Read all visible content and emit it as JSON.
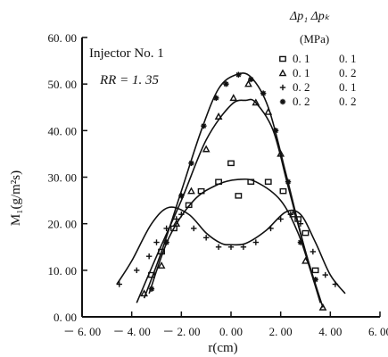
{
  "chart_data": {
    "type": "line",
    "xlabel": "r(cm)",
    "ylabel": "M₁(g/m²s)",
    "xlim": [
      -6,
      6
    ],
    "ylim": [
      0,
      60
    ],
    "x_ticks": [
      "－ 6. 00",
      "－ 4. 00",
      "－ 2. 00",
      "0. 00",
      "2. 00",
      "4. 00",
      "6. 00"
    ],
    "x_tick_values": [
      -6,
      -4,
      -2,
      0,
      2,
      4,
      6
    ],
    "y_ticks": [
      "0. 00",
      "10. 00",
      "20. 00",
      "30. 00",
      "40. 00",
      "50. 00",
      "60. 00"
    ],
    "y_tick_values": [
      0,
      10,
      20,
      30,
      40,
      50,
      60
    ],
    "annotation": {
      "line1": "Injector No. 1",
      "line2": "RR = 1. 35"
    },
    "legend": {
      "header_1": "Δp₁ Δpₖ",
      "header_2": "(MPa)",
      "position": "top-right",
      "entries": [
        {
          "marker": "square",
          "symbol": "□",
          "dp1": "0. 1",
          "dpk": "0. 1"
        },
        {
          "marker": "triangle",
          "symbol": "△",
          "dp1": "0. 1",
          "dpk": "0. 2"
        },
        {
          "marker": "plus",
          "symbol": "+",
          "dp1": "0. 2",
          "dpk": "0. 1"
        },
        {
          "marker": "asterisk",
          "symbol": "✱",
          "dp1": "0. 2",
          "dpk": "0. 2"
        }
      ]
    },
    "series": [
      {
        "marker": "square",
        "points": [
          [
            -3.2,
            9
          ],
          [
            -2.8,
            14
          ],
          [
            -2.3,
            19
          ],
          [
            -1.7,
            24
          ],
          [
            -1.2,
            27
          ],
          [
            -0.5,
            29
          ],
          [
            0,
            33
          ],
          [
            0.3,
            26
          ],
          [
            0.8,
            29
          ],
          [
            1.5,
            29
          ],
          [
            2.1,
            27
          ],
          [
            2.7,
            21
          ],
          [
            3.0,
            18
          ],
          [
            3.4,
            10
          ]
        ],
        "curve": [
          [
            -3.3,
            5
          ],
          [
            -2.5,
            17
          ],
          [
            -1.5,
            25
          ],
          [
            -0.5,
            28.5
          ],
          [
            0.3,
            29.5
          ],
          [
            1.0,
            29
          ],
          [
            2.0,
            25
          ],
          [
            2.7,
            18
          ],
          [
            3.2,
            10
          ],
          [
            3.6,
            3
          ]
        ]
      },
      {
        "marker": "triangle",
        "points": [
          [
            -3.5,
            5
          ],
          [
            -2.8,
            11
          ],
          [
            -2.2,
            20
          ],
          [
            -1.6,
            27
          ],
          [
            -1.0,
            36
          ],
          [
            -0.5,
            43
          ],
          [
            0.1,
            47
          ],
          [
            0.7,
            50
          ],
          [
            1.0,
            46
          ],
          [
            1.5,
            44
          ],
          [
            2.0,
            35
          ],
          [
            2.5,
            22
          ],
          [
            3.0,
            12
          ],
          [
            3.7,
            2
          ]
        ],
        "curve": [
          [
            -3.8,
            3
          ],
          [
            -3.0,
            13
          ],
          [
            -2.0,
            25
          ],
          [
            -1.0,
            38
          ],
          [
            0,
            45.5
          ],
          [
            0.6,
            46.5
          ],
          [
            1.0,
            46
          ],
          [
            1.7,
            40
          ],
          [
            2.3,
            28
          ],
          [
            3.0,
            14
          ],
          [
            3.7,
            2
          ]
        ]
      },
      {
        "marker": "plus",
        "points": [
          [
            -4.5,
            7
          ],
          [
            -3.8,
            10
          ],
          [
            -3.3,
            13
          ],
          [
            -3.0,
            16
          ],
          [
            -2.6,
            19
          ],
          [
            -2.2,
            21
          ],
          [
            -2.0,
            22
          ],
          [
            -1.5,
            19
          ],
          [
            -1.0,
            17
          ],
          [
            -0.5,
            15
          ],
          [
            0,
            15
          ],
          [
            0.5,
            15
          ],
          [
            1.0,
            16
          ],
          [
            1.6,
            19
          ],
          [
            2.0,
            21
          ],
          [
            2.4,
            22
          ],
          [
            2.8,
            20
          ],
          [
            3.3,
            14
          ],
          [
            3.8,
            9
          ],
          [
            4.2,
            7
          ]
        ],
        "curve": [
          [
            -4.6,
            7
          ],
          [
            -4.0,
            12
          ],
          [
            -3.2,
            20
          ],
          [
            -2.5,
            23.5
          ],
          [
            -1.7,
            22
          ],
          [
            -1.0,
            18
          ],
          [
            -0.4,
            15.8
          ],
          [
            0,
            15.5
          ],
          [
            0.6,
            15.8
          ],
          [
            1.4,
            18.5
          ],
          [
            2.2,
            22.5
          ],
          [
            2.8,
            22
          ],
          [
            3.4,
            16
          ],
          [
            4.0,
            9
          ],
          [
            4.6,
            5
          ]
        ]
      },
      {
        "marker": "asterisk",
        "points": [
          [
            -3.2,
            6
          ],
          [
            -2.6,
            16
          ],
          [
            -2.0,
            26
          ],
          [
            -1.6,
            33
          ],
          [
            -1.1,
            41
          ],
          [
            -0.6,
            47
          ],
          [
            -0.2,
            50
          ],
          [
            0.3,
            52
          ],
          [
            0.8,
            51
          ],
          [
            1.3,
            48
          ],
          [
            1.8,
            40
          ],
          [
            2.3,
            29
          ],
          [
            2.8,
            16
          ],
          [
            3.4,
            8
          ]
        ],
        "curve": [
          [
            -3.5,
            4
          ],
          [
            -2.8,
            14
          ],
          [
            -2.0,
            27
          ],
          [
            -1.2,
            40
          ],
          [
            -0.5,
            49
          ],
          [
            0.2,
            52
          ],
          [
            0.8,
            51.5
          ],
          [
            1.5,
            45
          ],
          [
            2.2,
            31
          ],
          [
            2.9,
            16
          ],
          [
            3.5,
            5
          ]
        ]
      }
    ]
  }
}
